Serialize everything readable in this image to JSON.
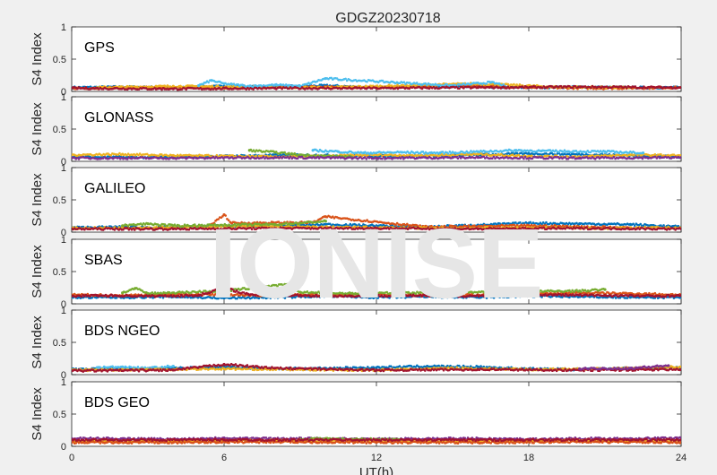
{
  "chart_data": {
    "type": "scatter",
    "title": "GDGZ20230718",
    "xlabel": "UT(h)",
    "ylabel": "S4 Index",
    "xlim": [
      0,
      24
    ],
    "ylim": [
      0,
      1
    ],
    "xticks": [
      "0",
      "6",
      "12",
      "18",
      "24"
    ],
    "yticks": [
      "0",
      "0.5",
      "1"
    ],
    "watermark": "IONISE",
    "colors": [
      "#0072bd",
      "#d95319",
      "#edb120",
      "#7e2f8e",
      "#77ac30",
      "#4dbeee",
      "#a2142f"
    ],
    "panels": [
      {
        "label": "GPS",
        "series": [
          {
            "color": "#0072bd",
            "x": [
              0,
              2,
              4,
              6,
              8,
              10,
              12,
              14,
              16,
              18,
              20,
              22,
              24
            ],
            "y": [
              0.06,
              0.07,
              0.06,
              0.08,
              0.07,
              0.09,
              0.06,
              0.08,
              0.07,
              0.06,
              0.07,
              0.06,
              0.06
            ]
          },
          {
            "color": "#d95319",
            "x": [
              0,
              3,
              6,
              9,
              12,
              15,
              18,
              21,
              24
            ],
            "y": [
              0.05,
              0.06,
              0.05,
              0.07,
              0.06,
              0.1,
              0.06,
              0.05,
              0.06
            ]
          },
          {
            "color": "#edb120",
            "x": [
              1,
              4,
              7,
              10,
              13,
              16,
              19,
              22
            ],
            "y": [
              0.06,
              0.08,
              0.07,
              0.06,
              0.09,
              0.12,
              0.07,
              0.06
            ]
          },
          {
            "color": "#4dbeee",
            "x": [
              5,
              5.5,
              6,
              7,
              8,
              9,
              10,
              15,
              16.5,
              17
            ],
            "y": [
              0.09,
              0.17,
              0.12,
              0.08,
              0.1,
              0.08,
              0.2,
              0.09,
              0.14,
              0.1
            ]
          },
          {
            "color": "#a2142f",
            "x": [
              0,
              4,
              8,
              12,
              16,
              20,
              24
            ],
            "y": [
              0.05,
              0.04,
              0.05,
              0.05,
              0.06,
              0.07,
              0.06
            ]
          }
        ]
      },
      {
        "label": "GLONASS",
        "series": [
          {
            "color": "#0072bd",
            "x": [
              0,
              3,
              6,
              9,
              12,
              15,
              18,
              21,
              24
            ],
            "y": [
              0.07,
              0.06,
              0.08,
              0.1,
              0.08,
              0.09,
              0.12,
              0.1,
              0.07
            ]
          },
          {
            "color": "#edb120",
            "x": [
              0,
              2,
              4,
              6,
              8,
              10,
              12,
              14,
              16,
              18,
              20,
              22,
              24
            ],
            "y": [
              0.1,
              0.11,
              0.09,
              0.08,
              0.07,
              0.08,
              0.1,
              0.09,
              0.11,
              0.08,
              0.07,
              0.1,
              0.09
            ]
          },
          {
            "color": "#77ac30",
            "x": [
              7,
              8,
              9,
              10,
              11
            ],
            "y": [
              0.17,
              0.14,
              0.1,
              0.08,
              0.07
            ]
          },
          {
            "color": "#4dbeee",
            "x": [
              9.5,
              10.5,
              11.5,
              13,
              14.5,
              16,
              17.5,
              18.5,
              21,
              22.5
            ],
            "y": [
              0.17,
              0.15,
              0.13,
              0.14,
              0.13,
              0.15,
              0.17,
              0.16,
              0.15,
              0.13
            ]
          },
          {
            "color": "#7e2f8e",
            "x": [
              0,
              4,
              8,
              12,
              16,
              20,
              24
            ],
            "y": [
              0.05,
              0.05,
              0.06,
              0.05,
              0.06,
              0.05,
              0.06
            ]
          }
        ]
      },
      {
        "label": "GALILEO",
        "series": [
          {
            "color": "#0072bd",
            "x": [
              0,
              2,
              4,
              6,
              8,
              10,
              12,
              14,
              16,
              18,
              20,
              22,
              24
            ],
            "y": [
              0.07,
              0.08,
              0.07,
              0.1,
              0.09,
              0.12,
              0.1,
              0.08,
              0.11,
              0.14,
              0.13,
              0.12,
              0.08
            ]
          },
          {
            "color": "#d95319",
            "x": [
              5.5,
              6,
              6.3,
              9.5,
              10,
              14,
              18,
              22
            ],
            "y": [
              0.12,
              0.27,
              0.14,
              0.15,
              0.24,
              0.08,
              0.1,
              0.07
            ]
          },
          {
            "color": "#edb120",
            "x": [
              0,
              3,
              6,
              9,
              12,
              15,
              18,
              21,
              24
            ],
            "y": [
              0.06,
              0.07,
              0.09,
              0.08,
              0.07,
              0.06,
              0.07,
              0.06,
              0.07
            ]
          },
          {
            "color": "#77ac30",
            "x": [
              2,
              3,
              4,
              8,
              9,
              10
            ],
            "y": [
              0.1,
              0.13,
              0.1,
              0.12,
              0.14,
              0.17
            ]
          },
          {
            "color": "#a2142f",
            "x": [
              0,
              4,
              8,
              12,
              16,
              20,
              24
            ],
            "y": [
              0.05,
              0.05,
              0.06,
              0.06,
              0.05,
              0.06,
              0.05
            ]
          }
        ]
      },
      {
        "label": "SBAS",
        "series": [
          {
            "color": "#0072bd",
            "x": [
              0,
              2,
              4,
              6,
              8,
              10,
              12,
              14,
              16,
              18,
              20,
              22,
              24
            ],
            "y": [
              0.1,
              0.1,
              0.11,
              0.09,
              0.1,
              0.12,
              0.1,
              0.11,
              0.1,
              0.12,
              0.11,
              0.1,
              0.1
            ]
          },
          {
            "color": "#d95319",
            "x": [
              0,
              2,
              4,
              6,
              8,
              10,
              12,
              14,
              16,
              18,
              20,
              22,
              24
            ],
            "y": [
              0.14,
              0.13,
              0.15,
              0.14,
              0.13,
              0.14,
              0.15,
              0.13,
              0.14,
              0.15,
              0.17,
              0.16,
              0.14
            ]
          },
          {
            "color": "#77ac30",
            "x": [
              2,
              2.5,
              3,
              6,
              8.5,
              9,
              10,
              11,
              20,
              21
            ],
            "y": [
              0.17,
              0.24,
              0.16,
              0.2,
              0.3,
              0.18,
              0.17,
              0.16,
              0.2,
              0.22
            ]
          },
          {
            "color": "#a2142f",
            "x": [
              0,
              1,
              3,
              5,
              6,
              7,
              9,
              11,
              13,
              15,
              17,
              19,
              21,
              23,
              24
            ],
            "y": [
              0.12,
              0.13,
              0.12,
              0.13,
              0.25,
              0.14,
              0.13,
              0.12,
              0.13,
              0.12,
              0.13,
              0.14,
              0.13,
              0.12,
              0.13
            ]
          }
        ]
      },
      {
        "label": "BDS NGEO",
        "series": [
          {
            "color": "#0072bd",
            "x": [
              0,
              2,
              4,
              6,
              8,
              10,
              12,
              14,
              16,
              18,
              20,
              22,
              24
            ],
            "y": [
              0.08,
              0.09,
              0.1,
              0.12,
              0.09,
              0.1,
              0.11,
              0.13,
              0.12,
              0.09,
              0.08,
              0.1,
              0.11
            ]
          },
          {
            "color": "#4dbeee",
            "x": [
              1,
              2,
              3,
              4
            ],
            "y": [
              0.11,
              0.12,
              0.1,
              0.13
            ]
          },
          {
            "color": "#edb120",
            "x": [
              0,
              3,
              6,
              9,
              12,
              15,
              18,
              21,
              24
            ],
            "y": [
              0.07,
              0.08,
              0.09,
              0.08,
              0.07,
              0.1,
              0.08,
              0.09,
              0.12
            ]
          },
          {
            "color": "#a2142f",
            "x": [
              0,
              4,
              6,
              8,
              12,
              16,
              20,
              24
            ],
            "y": [
              0.06,
              0.07,
              0.16,
              0.1,
              0.07,
              0.08,
              0.07,
              0.08
            ]
          },
          {
            "color": "#7e2f8e",
            "x": [
              20,
              22,
              23.5
            ],
            "y": [
              0.09,
              0.1,
              0.14
            ]
          }
        ]
      },
      {
        "label": "BDS GEO",
        "series": [
          {
            "color": "#7e2f8e",
            "x": [
              0,
              2,
              4,
              6,
              8,
              10,
              12,
              14,
              16,
              18,
              20,
              22,
              24
            ],
            "y": [
              0.12,
              0.12,
              0.11,
              0.13,
              0.12,
              0.12,
              0.11,
              0.12,
              0.12,
              0.11,
              0.12,
              0.12,
              0.13
            ]
          },
          {
            "color": "#77ac30",
            "x": [
              9,
              10,
              11,
              12,
              13
            ],
            "y": [
              0.11,
              0.12,
              0.11,
              0.11,
              0.1
            ]
          },
          {
            "color": "#edb120",
            "x": [
              0,
              4,
              8,
              12,
              16,
              20,
              24
            ],
            "y": [
              0.08,
              0.08,
              0.09,
              0.08,
              0.08,
              0.09,
              0.08
            ]
          },
          {
            "color": "#d95319",
            "x": [
              0,
              4,
              8,
              12,
              16,
              20,
              24
            ],
            "y": [
              0.06,
              0.06,
              0.07,
              0.06,
              0.06,
              0.07,
              0.06
            ]
          },
          {
            "color": "#a2142f",
            "x": [
              0,
              6,
              12,
              18,
              24
            ],
            "y": [
              0.1,
              0.1,
              0.1,
              0.1,
              0.1
            ]
          }
        ]
      }
    ]
  }
}
